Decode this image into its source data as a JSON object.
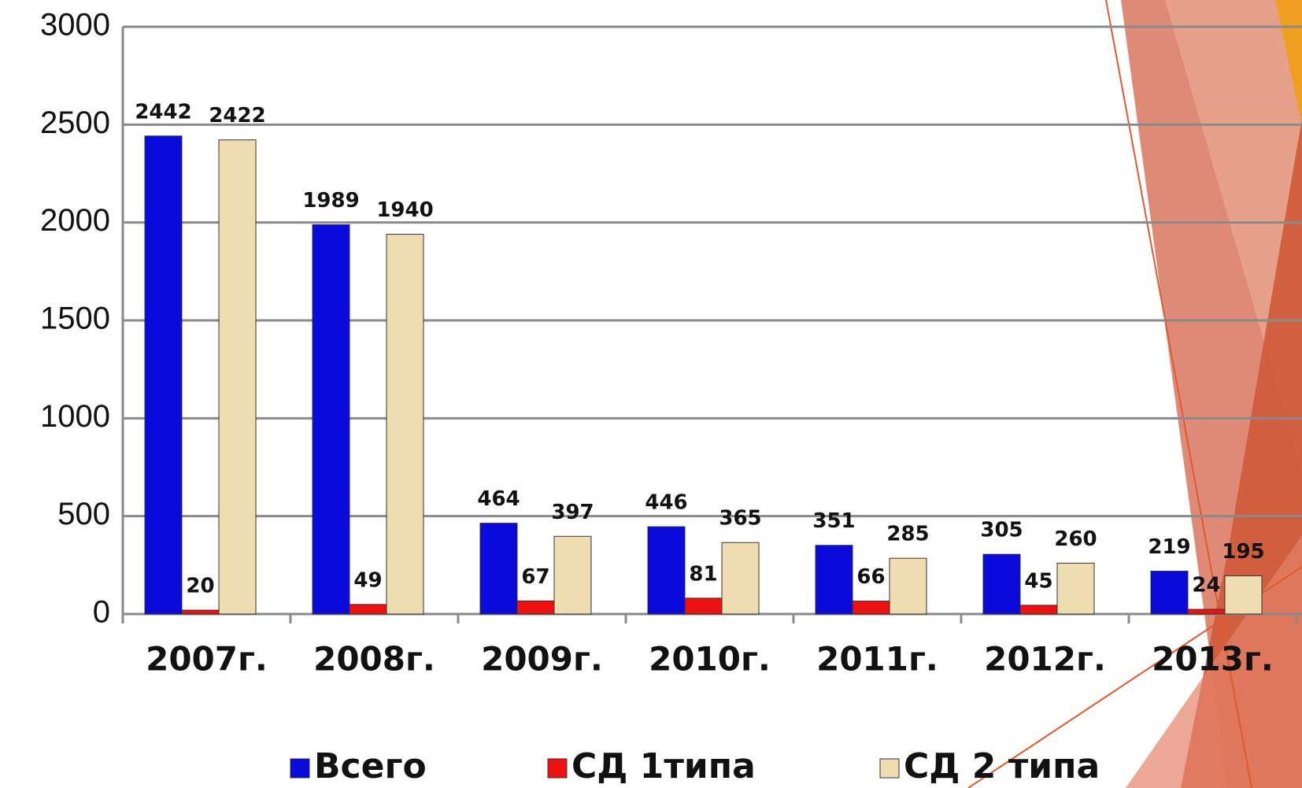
{
  "chart_data": {
    "type": "bar",
    "categories": [
      "2007г.",
      "2008г.",
      "2009г.",
      "2010г.",
      "2011г.",
      "2012г.",
      "2013г."
    ],
    "series": [
      {
        "name": "Всего",
        "color": "#0a0adc",
        "values": [
          2442,
          1989,
          464,
          446,
          351,
          305,
          219
        ]
      },
      {
        "name": "СД 1типа",
        "color": "#ee1111",
        "values": [
          20,
          49,
          67,
          81,
          66,
          45,
          24
        ]
      },
      {
        "name": "СД 2 типа",
        "color": "#efdcb0",
        "values": [
          2422,
          1940,
          397,
          365,
          285,
          260,
          195
        ]
      }
    ],
    "ylim": [
      0,
      3000
    ],
    "yticks": [
      0,
      500,
      1000,
      1500,
      2000,
      2500,
      3000
    ],
    "grid": true,
    "legend": "bottom"
  }
}
